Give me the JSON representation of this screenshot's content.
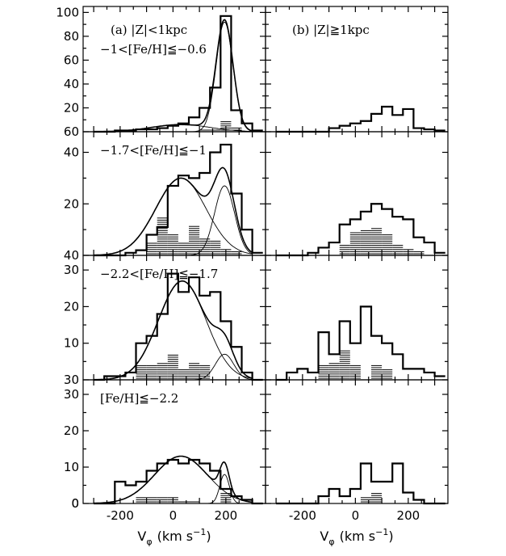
{
  "chart_data": {
    "type": "bar",
    "x_label": "V",
    "x_label_sub": "φ",
    "x_label_unit": "(km s",
    "x_label_exp": "−1",
    "x_label_close": ")",
    "x_ticks": [
      -200,
      0,
      200
    ],
    "xlim": [
      -340,
      350
    ],
    "bin_edges": [
      -300,
      -260,
      -220,
      -180,
      -140,
      -100,
      -60,
      -20,
      20,
      60,
      100,
      140,
      180,
      220,
      260,
      300,
      340
    ],
    "columns": [
      {
        "title": "(a)  |Z|<1kpc"
      },
      {
        "title": "(b)  |Z|≧1kpc"
      }
    ],
    "rows": [
      {
        "label": "−1<[Fe/H]≦−0.6",
        "ylim": [
          0,
          105
        ],
        "yticks": [
          20,
          40,
          60,
          80,
          100
        ],
        "bottom_tick_label": "60",
        "left_hist": [
          0,
          0,
          1,
          1,
          2,
          2,
          3,
          5,
          7,
          12,
          20,
          37,
          97,
          18,
          7,
          1
        ],
        "left_hatched": [
          0,
          0,
          0,
          0,
          0,
          0,
          0,
          0,
          0,
          1,
          2,
          3,
          9,
          4,
          0,
          0
        ],
        "right_hist": [
          0,
          0,
          0,
          0,
          0,
          3,
          5,
          7,
          9,
          15,
          21,
          14,
          19,
          3,
          2,
          1
        ],
        "right_hatched": [
          0,
          0,
          0,
          0,
          0,
          0,
          0,
          0,
          1,
          1,
          0,
          1,
          1,
          0,
          0,
          0
        ],
        "fits": [
          {
            "component": "total",
            "mean": 195,
            "sigma": 32,
            "amp": 92,
            "mean2": 30,
            "sigma2": 110,
            "amp2": 6
          }
        ]
      },
      {
        "label": "−1.7<[Fe/H]≦−1",
        "ylim": [
          0,
          48
        ],
        "yticks": [
          20,
          40
        ],
        "bottom_tick_label": "40",
        "left_hist": [
          0,
          0,
          0,
          1,
          2,
          8,
          11,
          27,
          31,
          30,
          32,
          40,
          43,
          24,
          10,
          1
        ],
        "left_hatched": [
          0,
          0,
          0,
          0,
          0,
          5,
          15,
          8,
          5,
          12,
          7,
          6,
          3,
          2,
          0,
          0
        ],
        "right_hist": [
          0,
          0,
          0,
          1,
          3,
          5,
          12,
          14,
          17,
          20,
          18,
          15,
          14,
          7,
          5,
          1
        ],
        "right_hatched": [
          0,
          0,
          0,
          0,
          0,
          0,
          4,
          9,
          10,
          11,
          8,
          4,
          3,
          2,
          0,
          0
        ],
        "fits": [
          {
            "component": "halo",
            "mean": 30,
            "sigma": 95,
            "amp": 30
          },
          {
            "component": "disk",
            "mean": 195,
            "sigma": 38,
            "amp": 27
          }
        ]
      },
      {
        "label": "−2.2<[Fe/H]≦−1.7",
        "ylim": [
          0,
          34
        ],
        "yticks": [
          10,
          20,
          30
        ],
        "bottom_tick_label": "30",
        "left_hist": [
          0,
          1,
          1,
          2,
          10,
          12,
          18,
          29,
          24,
          28,
          23,
          24,
          16,
          9,
          2,
          0
        ],
        "left_hatched": [
          0,
          0,
          0,
          0,
          4,
          4,
          5,
          7,
          3,
          5,
          4,
          0,
          0,
          0,
          0,
          0
        ],
        "right_hist": [
          0,
          2,
          3,
          2,
          13,
          7,
          16,
          10,
          20,
          12,
          10,
          7,
          3,
          3,
          2,
          1
        ],
        "right_hatched": [
          0,
          0,
          0,
          0,
          4,
          5,
          8,
          4,
          0,
          4,
          3,
          0,
          0,
          0,
          0,
          0
        ],
        "fits": [
          {
            "component": "halo",
            "mean": 35,
            "sigma": 90,
            "amp": 27
          },
          {
            "component": "disk",
            "mean": 195,
            "sigma": 35,
            "amp": 7
          }
        ]
      },
      {
        "label": "[Fe/H]≦−2.2",
        "ylim": [
          0,
          34
        ],
        "yticks": [
          0,
          10,
          20,
          30
        ],
        "bottom_tick_label": "0",
        "left_hist": [
          0,
          0,
          6,
          5,
          6,
          9,
          11,
          12,
          11,
          12,
          11,
          9,
          4,
          2,
          1,
          0
        ],
        "left_hatched": [
          0,
          0,
          0,
          0,
          2,
          2,
          2,
          2,
          1,
          1,
          0,
          0,
          3,
          0,
          0,
          0
        ],
        "right_hist": [
          0,
          0,
          0,
          0,
          2,
          4,
          2,
          4,
          11,
          6,
          6,
          11,
          3,
          1,
          0,
          0
        ],
        "right_hatched": [
          0,
          0,
          0,
          0,
          0,
          0,
          0,
          0,
          2,
          3,
          0,
          0,
          0,
          0,
          0,
          0
        ],
        "fits": [
          {
            "component": "halo",
            "mean": 30,
            "sigma": 100,
            "amp": 13
          },
          {
            "component": "disk",
            "mean": 195,
            "sigma": 18,
            "amp": 8
          }
        ]
      }
    ]
  }
}
